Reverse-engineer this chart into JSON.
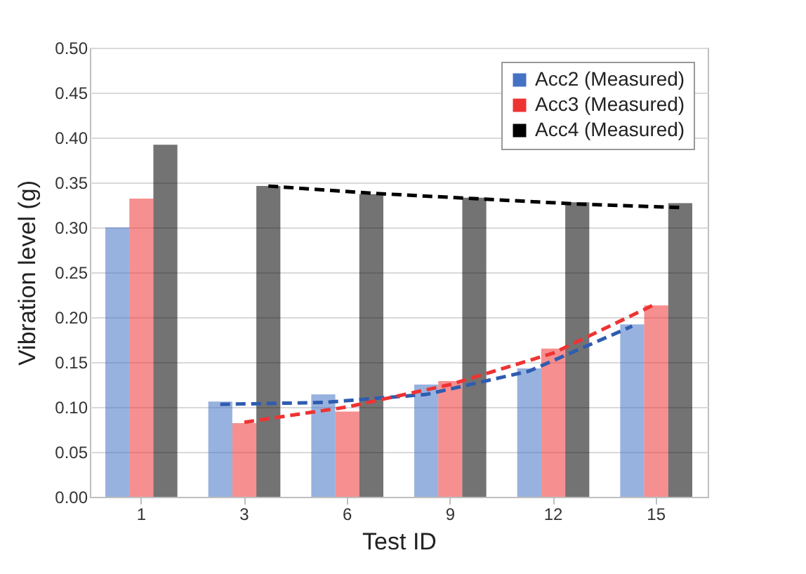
{
  "chart_data": {
    "type": "bar",
    "xlabel": "Test ID",
    "ylabel": "Vibration level (g)",
    "categories": [
      "1",
      "3",
      "6",
      "9",
      "12",
      "15"
    ],
    "series": [
      {
        "name": "Acc2 (Measured)",
        "color": "#4472c4",
        "values": [
          0.3,
          0.106,
          0.114,
          0.125,
          0.143,
          0.192
        ]
      },
      {
        "name": "Acc3 (Measured)",
        "color": "#ee3333",
        "values": [
          0.332,
          0.082,
          0.095,
          0.129,
          0.165,
          0.213
        ]
      },
      {
        "name": "Acc4 (Measured)",
        "color": "#000000",
        "values": [
          0.392,
          0.346,
          0.337,
          0.333,
          0.328,
          0.327
        ]
      },
      {
        "type": "line",
        "color": "#2f5cb0",
        "line_style": "dashed",
        "x": [
          "3",
          "6",
          "9",
          "12",
          "15"
        ],
        "values": [
          0.103,
          0.105,
          0.114,
          0.14,
          0.19
        ]
      },
      {
        "type": "line",
        "color": "#ee3333",
        "line_style": "dashed",
        "x": [
          "3",
          "6",
          "9",
          "12",
          "15"
        ],
        "values": [
          0.083,
          0.1,
          0.125,
          0.16,
          0.215
        ]
      },
      {
        "type": "line",
        "color": "#000000",
        "line_style": "dashed",
        "x": [
          "3",
          "6",
          "9",
          "12",
          "15"
        ],
        "values": [
          0.346,
          0.338,
          0.332,
          0.326,
          0.322
        ]
      }
    ],
    "ylim": [
      0,
      0.5
    ],
    "yticks": [
      {
        "value": 0,
        "label": "0.00"
      },
      {
        "value": 0.05,
        "label": "0.05"
      },
      {
        "value": 0.1,
        "label": "0.10"
      },
      {
        "value": 0.15,
        "label": "0.15"
      },
      {
        "value": 0.2,
        "label": "0.20"
      },
      {
        "value": 0.25,
        "label": "0.25"
      },
      {
        "value": 0.3,
        "label": "0.30"
      },
      {
        "value": 0.35,
        "label": "0.35"
      },
      {
        "value": 0.4,
        "label": "0.40"
      },
      {
        "value": 0.45,
        "label": "0.45"
      },
      {
        "value": 0.5,
        "label": "0.50"
      }
    ],
    "grid": "y",
    "legend": "top right",
    "marker": "none"
  }
}
